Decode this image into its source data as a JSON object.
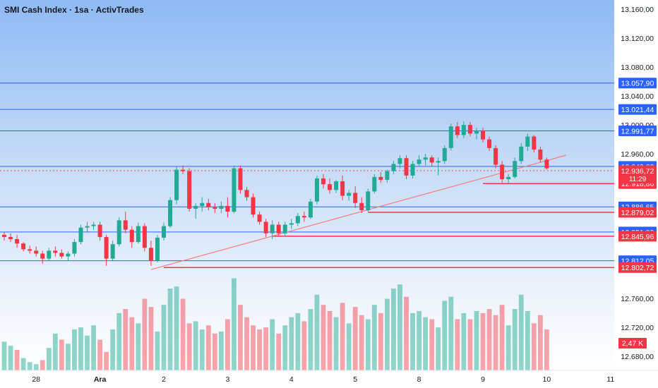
{
  "header": {
    "title": "SMI Cash Index · 1sa · ActivTrades"
  },
  "chart_data": {
    "type": "candlestick",
    "price_range": [
      12680,
      13165
    ],
    "y_ticks": [
      "13.160,00",
      "13.120,00",
      "13.080,00",
      "13.040,00",
      "13.000,00",
      "12.960,00",
      "12.760,00",
      "12.720,00",
      "12.680,00"
    ],
    "y_tick_values": [
      13160,
      13120,
      13080,
      13040,
      13000,
      12960,
      12760,
      12720,
      12680
    ],
    "x_labels": [
      "28",
      "Ara",
      "2",
      "3",
      "4",
      "5",
      "8",
      "9",
      "10",
      "11"
    ],
    "x_label_index": [
      5,
      15,
      25,
      35,
      45,
      55,
      65,
      75,
      85,
      95
    ],
    "blue_levels": [
      {
        "value": 13057.9,
        "label": "13.057,90"
      },
      {
        "value": 13021.44,
        "label": "13.021,44"
      },
      {
        "value": 12991.77,
        "label": "12.991,77"
      },
      {
        "value": 12942.6,
        "label": "12.942,60"
      },
      {
        "value": 12886.65,
        "label": "12.886,65"
      },
      {
        "value": 12851.89,
        "label": "12.851,89"
      },
      {
        "value": 12812.05,
        "label": "12.812,05"
      }
    ],
    "red_levels": [
      {
        "value": 12918.86,
        "label": "12.918,86",
        "start_index": 75
      },
      {
        "value": 12879.02,
        "label": "12.879,02",
        "start_index": 57
      },
      {
        "value": 12845.96,
        "label": "12.845,96",
        "start_index": 42
      },
      {
        "value": 12802.72,
        "label": "12.802,72",
        "start_index": 25
      }
    ],
    "current_price": {
      "value": 12936.72,
      "label": "12.936,72",
      "countdown": "11:29"
    },
    "volume_label": "2,47 K",
    "trendline": {
      "from": [
        23,
        12800
      ],
      "to": [
        88,
        12958
      ]
    },
    "candles": [
      [
        12848,
        12852,
        12840,
        12845
      ],
      [
        12845,
        12850,
        12838,
        12842
      ],
      [
        12842,
        12848,
        12830,
        12836
      ],
      [
        12836,
        12838,
        12825,
        12828
      ],
      [
        12828,
        12833,
        12822,
        12826
      ],
      [
        12826,
        12832,
        12818,
        12822
      ],
      [
        12822,
        12826,
        12808,
        12815
      ],
      [
        12815,
        12830,
        12812,
        12826
      ],
      [
        12826,
        12832,
        12818,
        12823
      ],
      [
        12823,
        12828,
        12815,
        12818
      ],
      [
        12818,
        12825,
        12812,
        12822
      ],
      [
        12822,
        12842,
        12818,
        12838
      ],
      [
        12838,
        12862,
        12835,
        12858
      ],
      [
        12858,
        12866,
        12852,
        12860
      ],
      [
        12860,
        12866,
        12855,
        12862
      ],
      [
        12862,
        12866,
        12840,
        12845
      ],
      [
        12845,
        12848,
        12805,
        12815
      ],
      [
        12815,
        12840,
        12812,
        12835
      ],
      [
        12835,
        12872,
        12832,
        12868
      ],
      [
        12868,
        12880,
        12850,
        12855
      ],
      [
        12855,
        12860,
        12830,
        12838
      ],
      [
        12838,
        12865,
        12836,
        12860
      ],
      [
        12860,
        12864,
        12825,
        12830
      ],
      [
        12830,
        12840,
        12805,
        12812
      ],
      [
        12812,
        12848,
        12810,
        12844
      ],
      [
        12844,
        12865,
        12840,
        12860
      ],
      [
        12860,
        12900,
        12858,
        12896
      ],
      [
        12896,
        12942,
        12890,
        12938
      ],
      [
        12938,
        12944,
        12932,
        12936
      ],
      [
        12936,
        12940,
        12880,
        12884
      ],
      [
        12884,
        12892,
        12870,
        12888
      ],
      [
        12888,
        12900,
        12880,
        12892
      ],
      [
        12892,
        12898,
        12882,
        12886
      ],
      [
        12886,
        12892,
        12878,
        12884
      ],
      [
        12884,
        12894,
        12878,
        12888
      ],
      [
        12888,
        12900,
        12872,
        12880
      ],
      [
        12880,
        12944,
        12878,
        12940
      ],
      [
        12940,
        12944,
        12905,
        12910
      ],
      [
        12910,
        12914,
        12895,
        12900
      ],
      [
        12900,
        12905,
        12872,
        12876
      ],
      [
        12876,
        12880,
        12862,
        12866
      ],
      [
        12866,
        12870,
        12845,
        12850
      ],
      [
        12850,
        12868,
        12842,
        12862
      ],
      [
        12862,
        12866,
        12846,
        12850
      ],
      [
        12850,
        12866,
        12846,
        12862
      ],
      [
        12862,
        12870,
        12856,
        12864
      ],
      [
        12864,
        12878,
        12860,
        12874
      ],
      [
        12874,
        12880,
        12866,
        12872
      ],
      [
        12872,
        12898,
        12870,
        12894
      ],
      [
        12894,
        12930,
        12890,
        12926
      ],
      [
        12926,
        12932,
        12912,
        12918
      ],
      [
        12918,
        12926,
        12905,
        12910
      ],
      [
        12910,
        12924,
        12906,
        12922
      ],
      [
        12922,
        12930,
        12896,
        12902
      ],
      [
        12902,
        12910,
        12895,
        12906
      ],
      [
        12906,
        12915,
        12885,
        12892
      ],
      [
        12892,
        12900,
        12878,
        12882
      ],
      [
        12882,
        12912,
        12880,
        12908
      ],
      [
        12908,
        12932,
        12905,
        12928
      ],
      [
        12928,
        12935,
        12920,
        12924
      ],
      [
        12924,
        12938,
        12920,
        12936
      ],
      [
        12936,
        12950,
        12932,
        12946
      ],
      [
        12946,
        12958,
        12940,
        12954
      ],
      [
        12954,
        12958,
        12925,
        12930
      ],
      [
        12930,
        12950,
        12926,
        12946
      ],
      [
        12946,
        12958,
        12942,
        12952
      ],
      [
        12952,
        12960,
        12944,
        12955
      ],
      [
        12955,
        12958,
        12942,
        12948
      ],
      [
        12948,
        12955,
        12930,
        12950
      ],
      [
        12950,
        12972,
        12946,
        12968
      ],
      [
        12968,
        13002,
        12965,
        12998
      ],
      [
        12998,
        13004,
        12982,
        12986
      ],
      [
        12986,
        13005,
        12982,
        13000
      ],
      [
        13000,
        13004,
        12984,
        12988
      ],
      [
        12988,
        12996,
        12980,
        12992
      ],
      [
        12992,
        12996,
        12976,
        12980
      ],
      [
        12980,
        12984,
        12964,
        12968
      ],
      [
        12968,
        12972,
        12940,
        12945
      ],
      [
        12945,
        12950,
        12920,
        12925
      ],
      [
        12925,
        12932,
        12918,
        12928
      ],
      [
        12928,
        12955,
        12926,
        12950
      ],
      [
        12950,
        12975,
        12946,
        12970
      ],
      [
        12970,
        12988,
        12964,
        12984
      ],
      [
        12984,
        12986,
        12962,
        12966
      ],
      [
        12966,
        12970,
        12948,
        12952
      ],
      [
        12952,
        12955,
        12938,
        12940
      ]
    ],
    "volumes": [
      [
        28,
        1
      ],
      [
        24,
        1
      ],
      [
        20,
        0
      ],
      [
        12,
        1
      ],
      [
        8,
        1
      ],
      [
        6,
        1
      ],
      [
        10,
        0
      ],
      [
        22,
        1
      ],
      [
        36,
        1
      ],
      [
        30,
        0
      ],
      [
        26,
        1
      ],
      [
        40,
        1
      ],
      [
        42,
        1
      ],
      [
        34,
        1
      ],
      [
        44,
        1
      ],
      [
        30,
        0
      ],
      [
        18,
        0
      ],
      [
        40,
        1
      ],
      [
        56,
        1
      ],
      [
        60,
        0
      ],
      [
        52,
        0
      ],
      [
        46,
        1
      ],
      [
        70,
        0
      ],
      [
        62,
        0
      ],
      [
        38,
        1
      ],
      [
        64,
        1
      ],
      [
        80,
        1
      ],
      [
        82,
        1
      ],
      [
        70,
        0
      ],
      [
        46,
        0
      ],
      [
        48,
        1
      ],
      [
        40,
        1
      ],
      [
        44,
        0
      ],
      [
        36,
        0
      ],
      [
        38,
        1
      ],
      [
        50,
        0
      ],
      [
        90,
        1
      ],
      [
        64,
        0
      ],
      [
        52,
        0
      ],
      [
        44,
        0
      ],
      [
        40,
        0
      ],
      [
        42,
        0
      ],
      [
        50,
        1
      ],
      [
        36,
        0
      ],
      [
        44,
        1
      ],
      [
        52,
        1
      ],
      [
        56,
        1
      ],
      [
        48,
        0
      ],
      [
        60,
        1
      ],
      [
        74,
        1
      ],
      [
        64,
        0
      ],
      [
        58,
        0
      ],
      [
        52,
        1
      ],
      [
        66,
        0
      ],
      [
        46,
        1
      ],
      [
        62,
        0
      ],
      [
        54,
        0
      ],
      [
        50,
        1
      ],
      [
        64,
        1
      ],
      [
        56,
        0
      ],
      [
        70,
        1
      ],
      [
        80,
        1
      ],
      [
        84,
        1
      ],
      [
        72,
        0
      ],
      [
        56,
        1
      ],
      [
        58,
        1
      ],
      [
        52,
        1
      ],
      [
        50,
        0
      ],
      [
        42,
        1
      ],
      [
        68,
        1
      ],
      [
        72,
        1
      ],
      [
        50,
        0
      ],
      [
        56,
        1
      ],
      [
        50,
        0
      ],
      [
        58,
        1
      ],
      [
        56,
        0
      ],
      [
        60,
        0
      ],
      [
        54,
        0
      ],
      [
        64,
        0
      ],
      [
        44,
        1
      ],
      [
        60,
        1
      ],
      [
        74,
        1
      ],
      [
        58,
        1
      ],
      [
        46,
        0
      ],
      [
        54,
        0
      ],
      [
        40,
        0
      ]
    ]
  }
}
